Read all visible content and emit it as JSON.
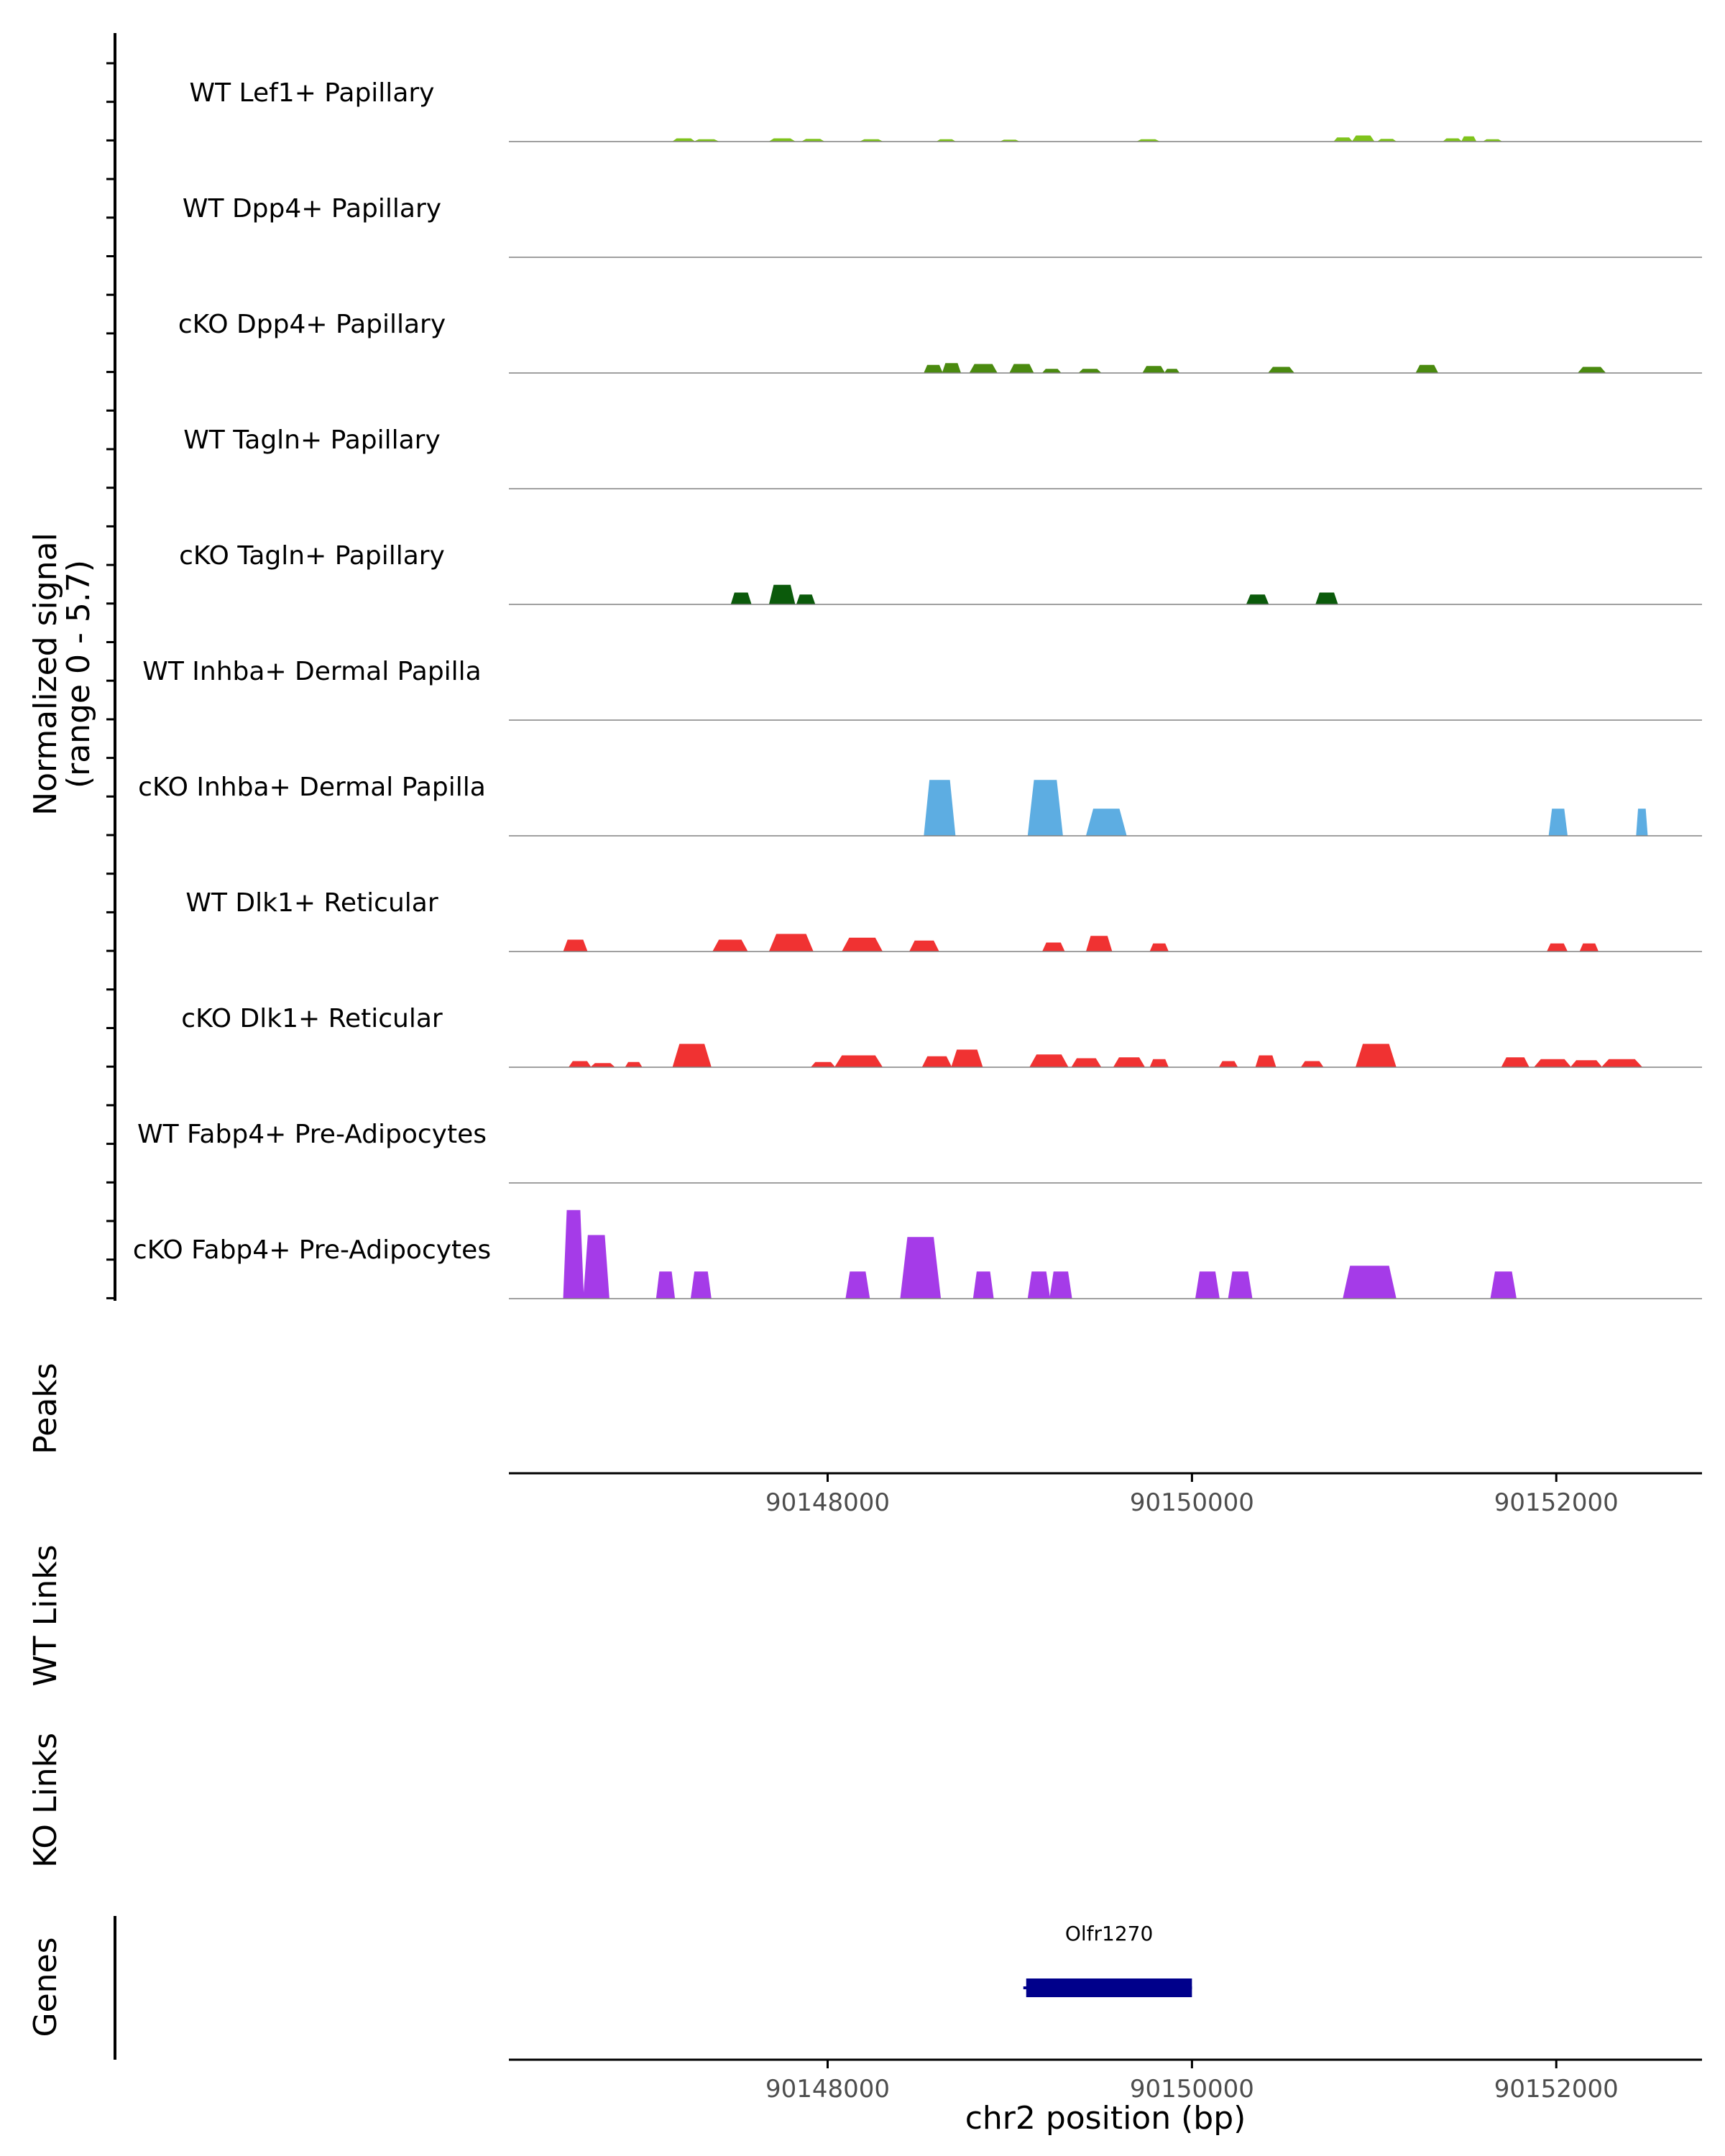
{
  "chart_data": {
    "type": "area",
    "title": "",
    "region": "chr2",
    "xlabel": "chr2 position (bp)",
    "xlim": [
      90146250,
      90152800
    ],
    "x_ticks": [
      90148000,
      90150000,
      90152000
    ],
    "x_tick_labels": [
      "90148000",
      "90150000",
      "90152000"
    ],
    "coverage": {
      "ylabel": "Normalized signal",
      "ylabel_range": "(range 0 - 5.7)",
      "ylim": [
        0,
        5.7
      ],
      "tracks": [
        {
          "name": "WT Lef1+ Papillary",
          "color": "#7FC31C",
          "peaks": [
            [
              90147150,
              90147270,
              0.15
            ],
            [
              90147270,
              90147400,
              0.1
            ],
            [
              90147680,
              90147820,
              0.15
            ],
            [
              90147860,
              90147980,
              0.12
            ],
            [
              90148180,
              90148300,
              0.1
            ],
            [
              90148600,
              90148700,
              0.1
            ],
            [
              90148950,
              90149050,
              0.08
            ],
            [
              90149700,
              90149820,
              0.1
            ],
            [
              90150780,
              90150880,
              0.2
            ],
            [
              90150880,
              90151000,
              0.3
            ],
            [
              90151020,
              90151120,
              0.12
            ],
            [
              90151380,
              90151480,
              0.15
            ],
            [
              90151480,
              90151560,
              0.25
            ],
            [
              90151600,
              90151700,
              0.1
            ]
          ]
        },
        {
          "name": "WT Dpp4+ Papillary",
          "color": "#4A8A0F",
          "peaks": []
        },
        {
          "name": "cKO Dpp4+ Papillary",
          "color": "#4A8A0F",
          "peaks": [
            [
              90148530,
              90148630,
              0.4
            ],
            [
              90148630,
              90148730,
              0.5
            ],
            [
              90148780,
              90148930,
              0.45
            ],
            [
              90149000,
              90149130,
              0.45
            ],
            [
              90149180,
              90149280,
              0.2
            ],
            [
              90149380,
              90149500,
              0.2
            ],
            [
              90149730,
              90149850,
              0.35
            ],
            [
              90149850,
              90149930,
              0.2
            ],
            [
              90150420,
              90150560,
              0.3
            ],
            [
              90151230,
              90151350,
              0.4
            ],
            [
              90152120,
              90152270,
              0.3
            ]
          ]
        },
        {
          "name": "WT Tagln+ Papillary",
          "color": "#1A6010",
          "peaks": []
        },
        {
          "name": "cKO Tagln+ Papillary",
          "color": "#0B5A0B",
          "peaks": [
            [
              90147470,
              90147580,
              0.6
            ],
            [
              90147680,
              90147820,
              1.0
            ],
            [
              90147830,
              90147930,
              0.5
            ],
            [
              90150300,
              90150420,
              0.5
            ],
            [
              90150680,
              90150800,
              0.6
            ]
          ]
        },
        {
          "name": "WT Inhba+ Dermal Papilla",
          "color": "#5DADE2",
          "peaks": []
        },
        {
          "name": "cKO Inhba+ Dermal Papilla",
          "color": "#5DADE2",
          "peaks": [
            [
              90148530,
              90148700,
              2.9
            ],
            [
              90149100,
              90149290,
              2.9
            ],
            [
              90149420,
              90149640,
              1.4
            ],
            [
              90151960,
              90152060,
              1.4
            ],
            [
              90152440,
              90152500,
              1.4
            ]
          ]
        },
        {
          "name": "WT Dlk1+ Reticular",
          "color": "#F03232",
          "peaks": [
            [
              90146550,
              90146680,
              0.6
            ],
            [
              90147370,
              90147560,
              0.6
            ],
            [
              90147680,
              90147920,
              0.9
            ],
            [
              90148080,
              90148300,
              0.7
            ],
            [
              90148450,
              90148610,
              0.55
            ],
            [
              90149180,
              90149300,
              0.45
            ],
            [
              90149420,
              90149560,
              0.8
            ],
            [
              90149770,
              90149870,
              0.4
            ],
            [
              90151950,
              90152060,
              0.4
            ],
            [
              90152130,
              90152230,
              0.4
            ]
          ]
        },
        {
          "name": "cKO Dlk1+ Reticular",
          "color": "#F03232",
          "peaks": [
            [
              90146580,
              90146700,
              0.3
            ],
            [
              90146700,
              90146830,
              0.2
            ],
            [
              90146890,
              90146980,
              0.25
            ],
            [
              90147150,
              90147360,
              1.2
            ],
            [
              90147910,
              90148040,
              0.25
            ],
            [
              90148040,
              90148300,
              0.6
            ],
            [
              90148520,
              90148680,
              0.55
            ],
            [
              90148680,
              90148850,
              0.9
            ],
            [
              90149110,
              90149320,
              0.65
            ],
            [
              90149340,
              90149500,
              0.45
            ],
            [
              90149570,
              90149740,
              0.5
            ],
            [
              90149770,
              90149870,
              0.4
            ],
            [
              90150150,
              90150250,
              0.3
            ],
            [
              90150350,
              90150460,
              0.6
            ],
            [
              90150600,
              90150720,
              0.3
            ],
            [
              90150900,
              90151120,
              1.2
            ],
            [
              90151700,
              90151850,
              0.5
            ],
            [
              90151880,
              90152080,
              0.4
            ],
            [
              90152080,
              90152250,
              0.35
            ],
            [
              90152250,
              90152470,
              0.4
            ]
          ]
        },
        {
          "name": "WT Fabp4+ Pre-Adipocytes",
          "color": "#A53BE8",
          "peaks": []
        },
        {
          "name": "cKO Fabp4+ Pre-Adipocytes",
          "color": "#A53BE8",
          "peaks": [
            [
              90146550,
              90146660,
              4.6
            ],
            [
              90146660,
              90146800,
              3.3
            ],
            [
              90147060,
              90147160,
              1.4
            ],
            [
              90147250,
              90147360,
              1.4
            ],
            [
              90148100,
              90148230,
              1.4
            ],
            [
              90148400,
              90148620,
              3.2
            ],
            [
              90148800,
              90148910,
              1.4
            ],
            [
              90149100,
              90149220,
              1.4
            ],
            [
              90149220,
              90149340,
              1.4
            ],
            [
              90150020,
              90150150,
              1.4
            ],
            [
              90150200,
              90150330,
              1.4
            ],
            [
              90150830,
              90151120,
              1.7
            ],
            [
              90151640,
              90151780,
              1.4
            ]
          ]
        }
      ]
    },
    "peaks_track": {
      "label": "Peaks",
      "items": []
    },
    "links": [
      {
        "label": "WT Links",
        "items": []
      },
      {
        "label": "KO Links",
        "items": []
      }
    ],
    "genes": {
      "label": "Genes",
      "items": [
        {
          "name": "Olfr1270",
          "start": 90149090,
          "end": 90150000,
          "strand": "-"
        }
      ]
    }
  }
}
